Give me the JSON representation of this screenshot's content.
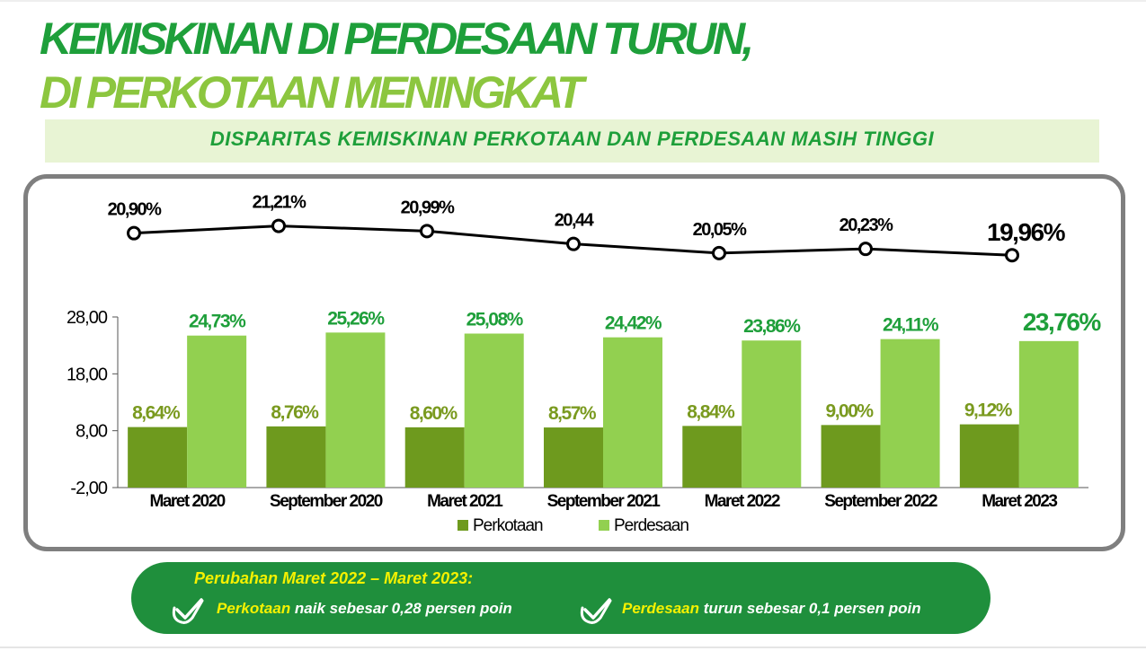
{
  "header": {
    "title_line1": "KEMISKINAN DI PERDESAAN TURUN,",
    "title_line2": "DI PERKOTAAN MENINGKAT",
    "subtitle": "DISPARITAS KEMISKINAN PERKOTAAN DAN PERDESAAN MASIH TINGGI"
  },
  "colors": {
    "title_dark_green": "#1e9f3a",
    "title_light_green": "#8cc63f",
    "perkotaan_bar": "#6e9a1e",
    "perdesaan_bar": "#92d050",
    "perkotaan_label": "#7a9a1f",
    "perdesaan_label": "#1e9f3a",
    "footer_bg": "#1f8f3c",
    "footer_highlight": "#f5f100"
  },
  "chart_data": [
    {
      "type": "line",
      "categories": [
        "Maret 2020",
        "September 2020",
        "Maret 2021",
        "September 2021",
        "Maret 2022",
        "September 2022",
        "Maret 2023"
      ],
      "values": [
        20.9,
        21.21,
        20.99,
        20.44,
        20.05,
        20.23,
        19.96
      ],
      "labels": [
        "20,90%",
        "21,21%",
        "20,99%",
        "20,44",
        "20,05%",
        "20,23%",
        "19,96%"
      ]
    },
    {
      "type": "bar",
      "categories": [
        "Maret 2020",
        "September 2020",
        "Maret 2021",
        "September 2021",
        "Maret 2022",
        "September 2022",
        "Maret 2023"
      ],
      "series": [
        {
          "name": "Perkotaan",
          "values": [
            8.64,
            8.76,
            8.6,
            8.57,
            8.84,
            9.0,
            9.12
          ],
          "labels": [
            "8,64%",
            "8,76%",
            "8,60%",
            "8,57%",
            "8,84%",
            "9,00%",
            "9,12%"
          ]
        },
        {
          "name": "Perdesaan",
          "values": [
            24.73,
            25.26,
            25.08,
            24.42,
            23.86,
            24.11,
            23.76
          ],
          "labels": [
            "24,73%",
            "25,26%",
            "25,08%",
            "24,42%",
            "23,86%",
            "24,11%",
            "23,76%"
          ]
        }
      ],
      "ylim": [
        -2,
        28
      ],
      "yticks": [
        "28,00",
        "18,00",
        "8,00",
        "-2,00"
      ],
      "ytick_values": [
        28,
        18,
        8,
        -2
      ],
      "legend": "bottom"
    }
  ],
  "footer": {
    "title": "Perubahan Maret 2022 – Maret 2023:",
    "item1_highlight": "Perkotaan",
    "item1_text": " naik sebesar 0,28 persen poin",
    "item2_highlight": "Perdesaan",
    "item2_text": " turun sebesar 0,1 persen poin"
  }
}
